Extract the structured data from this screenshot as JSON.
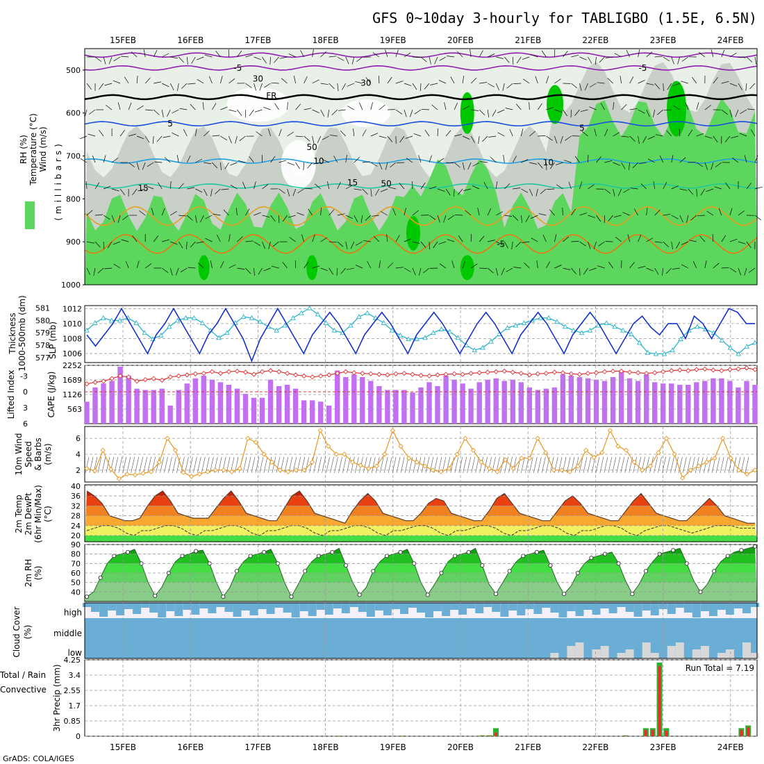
{
  "title": "GFS 0~10day 3-hourly for TABLIGBO (1.5E, 6.5N)",
  "footer": "GrADS: COLA/IGES",
  "dates": [
    "15FEB",
    "16FEB",
    "17FEB",
    "18FEB",
    "19FEB",
    "20FEB",
    "21FEB",
    "22FEB",
    "23FEB",
    "24FEB"
  ],
  "colors": {
    "green_dark": "#00c800",
    "green": "#5cd65c",
    "green_light": "#a8e0a8",
    "grey": "#c8d0c8",
    "pale": "#e8f0e8",
    "slp": "#1432c8",
    "thick": "#28b4c8",
    "li": "#e03030",
    "cape": "#c070f0",
    "wind": "#e8961e",
    "cloud": "#6aaed6",
    "rain": "#e83030",
    "total": "#30b030"
  },
  "chart_data": [
    {
      "type": "contour",
      "name": "upper-air",
      "ylabel_left": [
        "RH (%)",
        "Temperature (°C)",
        "Wind (m/s)"
      ],
      "ylabel_right": "(millibars)",
      "yticks": [
        500,
        600,
        700,
        800,
        900,
        1000
      ],
      "ylim": [
        450,
        1000
      ],
      "isotherm_labels": [
        {
          "text": "-5",
          "level": 495,
          "day": 1.7
        },
        {
          "text": "-5",
          "level": 495,
          "day": 7.7
        },
        {
          "text": "FR",
          "level": 560,
          "day": 2.2
        },
        {
          "text": "5",
          "level": 625,
          "day": 0.7
        },
        {
          "text": "5",
          "level": 635,
          "day": 6.8
        },
        {
          "text": "10",
          "level": 712,
          "day": 2.9
        },
        {
          "text": "10",
          "level": 715,
          "day": 6.3
        },
        {
          "text": "15",
          "level": 775,
          "day": 0.3
        },
        {
          "text": "15",
          "level": 762,
          "day": 3.4
        },
        {
          "text": "-5",
          "level": 905,
          "day": 5.6
        },
        {
          "text": "30",
          "level": 520,
          "day": 2.0
        },
        {
          "text": "30",
          "level": 530,
          "day": 3.6
        },
        {
          "text": "50",
          "level": 680,
          "day": 2.8
        },
        {
          "text": "50",
          "level": 765,
          "day": 3.9
        }
      ]
    },
    {
      "type": "line",
      "name": "slp-thickness",
      "ylabel_left": [
        "Thickness",
        "1000-500mb (dm)"
      ],
      "ylabel_right": "SLP (mb)",
      "yticks_left": [
        577,
        578,
        579,
        580,
        581
      ],
      "yticks_right": [
        1006,
        1008,
        1010,
        1012
      ],
      "ylim_left": [
        576.6,
        581.2
      ],
      "ylim_right": [
        1004.8,
        1012.4
      ],
      "series": [
        {
          "name": "SLP",
          "values": [
            1008.5,
            1007,
            1008.5,
            1010,
            1012,
            1010,
            1008,
            1006,
            1008.5,
            1010,
            1012,
            1010,
            1008,
            1006,
            1008.5,
            1010,
            1012,
            1010,
            1008,
            1005,
            1008,
            1010,
            1012,
            1010,
            1008,
            1006,
            1008.5,
            1010,
            1011.5,
            1010,
            1008,
            1006,
            1008.5,
            1010,
            1011.5,
            1010,
            1008,
            1006,
            1008.5,
            1010,
            1011.5,
            1010,
            1008,
            1006,
            1008,
            1010,
            1011.5,
            1010,
            1008,
            1006,
            1008.5,
            1010,
            1011.5,
            1010,
            1008,
            1006,
            1008.5,
            1010,
            1011.5,
            1010,
            1008,
            1006,
            1008,
            1010,
            1011,
            1009.5,
            1008.5,
            1010,
            1010,
            1008,
            1011,
            1010,
            1008,
            1010,
            1012,
            1011.5,
            1010,
            1010
          ]
        },
        {
          "name": "Thickness",
          "values": [
            579.2,
            579.8,
            580.2,
            580,
            580,
            580.2,
            579.8,
            579,
            578.5,
            578.8,
            579.5,
            580,
            580.2,
            580.2,
            579.8,
            579.2,
            578.6,
            579,
            579.8,
            580.3,
            580.2,
            579.9,
            579.5,
            579.2,
            579.6,
            580.2,
            580.6,
            581,
            580.5,
            579.8,
            579.2,
            579,
            579.6,
            580.3,
            580.6,
            580.2,
            579.8,
            579.2,
            578.8,
            578.5,
            578.5,
            578.6,
            579,
            579.3,
            579.1,
            578.6,
            578,
            577.6,
            577.8,
            578.3,
            578.9,
            579.4,
            579.6,
            579.8,
            580,
            580.2,
            580.2,
            579.9,
            579.5,
            579.2,
            579,
            579.2,
            579.6,
            579.8,
            579.5,
            579.2,
            578.9,
            578.2,
            577.4,
            577.3,
            577.3,
            577.6,
            578.5,
            579.2,
            579.5,
            579.3,
            579,
            578.4,
            577.8,
            577.3,
            577.9,
            578.2
          ]
        }
      ]
    },
    {
      "type": "bar+line",
      "name": "cape-li",
      "ylabel_left": "Lifted Index",
      "ylabel_right": "CAPE (J/kg)",
      "yticks_left": [
        -3,
        0,
        3,
        6
      ],
      "yticks_right": [
        563,
        1126,
        1689,
        2252
      ],
      "ylim_left": [
        -5,
        6
      ],
      "ylim_right": [
        0,
        2252
      ],
      "series": [
        {
          "name": "CAPE",
          "values": [
            850,
            1400,
            1550,
            1650,
            2200,
            1850,
            1350,
            1300,
            1300,
            1350,
            700,
            1300,
            1550,
            1750,
            1850,
            1700,
            1600,
            1500,
            1350,
            1150,
            1000,
            1000,
            1700,
            1450,
            1500,
            1350,
            900,
            900,
            850,
            700,
            2050,
            1800,
            1900,
            1800,
            1650,
            1450,
            1300,
            1300,
            1300,
            1200,
            1400,
            1600,
            1450,
            1850,
            1700,
            1550,
            1350,
            1600,
            1700,
            1750,
            1650,
            1700,
            1600,
            1400,
            1300,
            1350,
            1400,
            1900,
            1850,
            1800,
            1750,
            1700,
            1650,
            1800,
            2050,
            1750,
            1650,
            1900,
            1600,
            1550,
            1550,
            1500,
            1500,
            1600,
            1650,
            1750,
            1750,
            1650,
            1400,
            1650,
            1500
          ]
        },
        {
          "name": "Lifted Index",
          "values": [
            -1.5,
            -1.8,
            -2,
            -2.5,
            -3,
            -2.8,
            -2,
            -2.3,
            -2.5,
            -2.2,
            -2.8,
            -3,
            -3.2,
            -3.4,
            -3.5,
            -3.8,
            -3.5,
            -3.8,
            -3.9,
            -3.7,
            -3.3,
            -3.8,
            -4,
            -3.8,
            -3.5,
            -3.2,
            -3,
            -2.8,
            -3,
            -3.2,
            -3.5,
            -3.8,
            -3.6,
            -3.5,
            -3.4,
            -3.3,
            -3.2,
            -3.4,
            -3.5,
            -3.3,
            -3.1,
            -3,
            -3.2,
            -3.3,
            -3.4,
            -3.3,
            -3.5,
            -3.6,
            -3.7,
            -3.8,
            -3.9,
            -3.7,
            -3.5,
            -3.2,
            -3.4,
            -3.5,
            -3.7,
            -3.6,
            -3.4,
            -3.3,
            -3.5,
            -3.6,
            -3.8,
            -3.9,
            -3.9,
            -3.7,
            -3.6,
            -3.5,
            -3.6,
            -3.8,
            -4,
            -4.1,
            -4,
            -4.2,
            -4.3,
            -4.1,
            -4,
            -4.2,
            -4.3,
            -4.5,
            -4.2
          ]
        }
      ]
    },
    {
      "type": "line",
      "name": "10m-wind",
      "ylabel_left": [
        "10m Wind",
        "Speed",
        "& Barbs",
        "(m/s)"
      ],
      "yticks": [
        2,
        4,
        6
      ],
      "ylim": [
        0.5,
        7.5
      ],
      "series": [
        {
          "name": "Speed",
          "values": [
            2.2,
            1.9,
            4.5,
            2.1,
            0.9,
            1.5,
            1.4,
            1.6,
            1.8,
            3,
            6,
            4.5,
            1.7,
            1.2,
            1.5,
            1.8,
            2,
            2,
            1.8,
            2.2,
            6,
            5.5,
            4,
            3,
            2,
            1.8,
            2,
            2,
            3,
            7,
            5,
            4,
            4,
            3,
            2.6,
            2.2,
            2.5,
            4,
            7,
            5,
            3.5,
            3,
            2.5,
            2,
            1.8,
            2.2,
            4,
            6,
            4.5,
            3,
            2.2,
            1.8,
            3.3,
            2.2,
            3.5,
            3.5,
            6,
            4.2,
            2,
            2,
            1.8,
            2.5,
            4.5,
            3.6,
            4.2,
            7,
            5,
            4.5,
            3,
            2,
            2.5,
            4.2,
            6,
            4,
            1,
            2,
            2.5,
            3,
            3.5,
            6,
            3.5,
            2,
            1.5,
            2
          ]
        }
      ]
    },
    {
      "type": "area",
      "name": "2m-temp",
      "ylabel_left": [
        "2m Temp",
        "2m DewPt",
        "(6hr Min/Max)",
        "(°C)"
      ],
      "yticks": [
        20,
        24,
        28,
        32,
        36,
        40
      ],
      "ylim": [
        17.5,
        40.5
      ],
      "series": [
        {
          "name": "Temp",
          "values": [
            38,
            36,
            33,
            28,
            27,
            26,
            26,
            27,
            32,
            36,
            38,
            34,
            29,
            28,
            27,
            27,
            27,
            31,
            35,
            38,
            34,
            29,
            28,
            27,
            26,
            26,
            31,
            36,
            38,
            34,
            29,
            28,
            27,
            26,
            25,
            30,
            34,
            37,
            34,
            29,
            28,
            27,
            26,
            26,
            29,
            33,
            35,
            34,
            29,
            28,
            27,
            26,
            26,
            30,
            35,
            37,
            33,
            29,
            28,
            27,
            26,
            26,
            30,
            34,
            36,
            33,
            29,
            28,
            27,
            26,
            26,
            30,
            34,
            37,
            33,
            29,
            28,
            27,
            26,
            26,
            29,
            32,
            35,
            32,
            28,
            27,
            26,
            25,
            25
          ]
        },
        {
          "name": "DewPt",
          "values": [
            22,
            23,
            24,
            24,
            23,
            21,
            20,
            22,
            22,
            23,
            24,
            24,
            23,
            21,
            20,
            22,
            22,
            23,
            24,
            24,
            23,
            21,
            20,
            22,
            22,
            23,
            24,
            24,
            23,
            21,
            20,
            22,
            22,
            23,
            24,
            24,
            23,
            21,
            20,
            22,
            22,
            23,
            24,
            24,
            23,
            21,
            20,
            22,
            22,
            23,
            24,
            24,
            23,
            21,
            20,
            22,
            22,
            23,
            24,
            24,
            23,
            21,
            20,
            22,
            22,
            23,
            24,
            24,
            23,
            21,
            20,
            22,
            23,
            24,
            24,
            23,
            22,
            21,
            22,
            23,
            24,
            24,
            24,
            23,
            23,
            23
          ]
        }
      ]
    },
    {
      "type": "area",
      "name": "2m-rh",
      "ylabel_left": [
        "2m RH",
        "(%)"
      ],
      "yticks": [
        40,
        50,
        60,
        70,
        80,
        90
      ],
      "ylim": [
        30,
        90
      ],
      "series": [
        {
          "name": "RH",
          "values": [
            35,
            40,
            55,
            70,
            78,
            80,
            82,
            85,
            70,
            50,
            36,
            45,
            60,
            72,
            78,
            80,
            83,
            84,
            70,
            50,
            35,
            45,
            62,
            72,
            78,
            80,
            82,
            85,
            70,
            50,
            35,
            48,
            62,
            72,
            78,
            80,
            82,
            86,
            68,
            50,
            37,
            45,
            62,
            72,
            78,
            80,
            82,
            85,
            70,
            50,
            37,
            48,
            60,
            72,
            78,
            80,
            82,
            86,
            68,
            48,
            38,
            50,
            62,
            72,
            78,
            80,
            82,
            84,
            68,
            50,
            38,
            46,
            60,
            70,
            76,
            78,
            80,
            82,
            70,
            52,
            38,
            48,
            62,
            72,
            80,
            82,
            84,
            86,
            70,
            52,
            40,
            48,
            62,
            72,
            78,
            82,
            84,
            86,
            88
          ]
        }
      ]
    },
    {
      "type": "bar",
      "name": "cloud-cover",
      "ylabel_left": [
        "Cloud Cover",
        "(%)"
      ],
      "levels": [
        "high",
        "middle",
        "low"
      ]
    },
    {
      "type": "bar",
      "name": "precip",
      "ylabel_left": [
        "Total / Rain",
        "Convective",
        "3hr Precip (mm)"
      ],
      "yticks": [
        0,
        0.85,
        1.7,
        2.55,
        3.4,
        4.25
      ],
      "ytick_labels": [
        "0",
        "0.85",
        "1.7",
        "2.55",
        "3.4",
        "4.25"
      ],
      "ylim": [
        0,
        4.25
      ],
      "annotation": "Run Total = 7.19",
      "series": [
        {
          "name": "Total",
          "values": [
            [
              37,
              0.03
            ],
            [
              46,
              0.03
            ],
            [
              58,
              0.05
            ],
            [
              59,
              0.05
            ],
            [
              60,
              0.45
            ],
            [
              79,
              0.05
            ],
            [
              82,
              0.45
            ],
            [
              83,
              0.45
            ],
            [
              84,
              4.1
            ],
            [
              85,
              0.45
            ],
            [
              96,
              0.45
            ],
            [
              97,
              0.6
            ]
          ]
        },
        {
          "name": "Convective",
          "values": [
            [
              37,
              0.02
            ],
            [
              46,
              0.02
            ],
            [
              58,
              0.03
            ],
            [
              59,
              0.03
            ],
            [
              60,
              0.2
            ],
            [
              79,
              0.03
            ],
            [
              82,
              0.35
            ],
            [
              83,
              0.35
            ],
            [
              84,
              3.9
            ],
            [
              85,
              0.3
            ],
            [
              96,
              0.35
            ],
            [
              97,
              0.5
            ]
          ]
        }
      ]
    }
  ]
}
